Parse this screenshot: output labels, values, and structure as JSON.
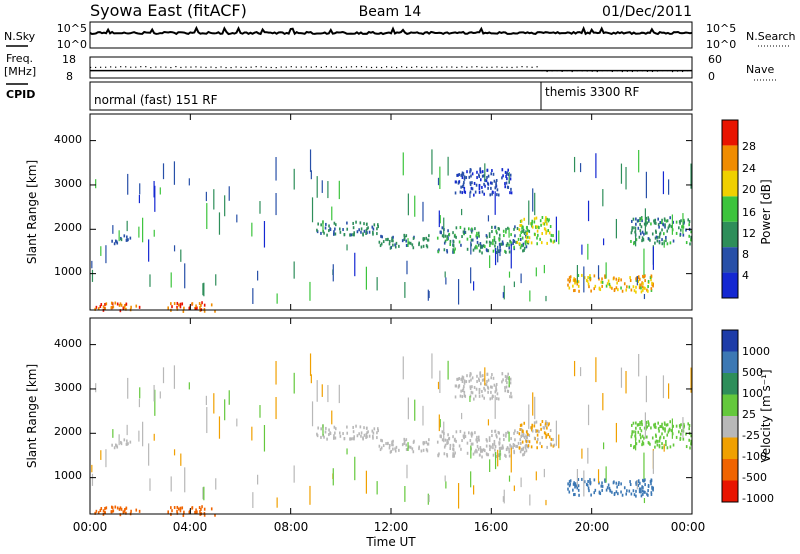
{
  "header": {
    "title": "Syowa East (fitACF)",
    "beam": "Beam 14",
    "date": "01/Dec/2011"
  },
  "noise_panel": {
    "label": "N.Sky",
    "left_ticks": [
      "10^5",
      "10^0"
    ],
    "right_label": "N.Search",
    "right_ticks": [
      "10^5",
      "10^0"
    ]
  },
  "freq_panel": {
    "label_line1": "Freq.",
    "label_line2": "[MHz]",
    "left_ticks": [
      "18",
      "8"
    ],
    "right_label": "Nave",
    "right_ticks": [
      "60",
      "0"
    ],
    "freq_mhz": 11.5
  },
  "cpid_panel": {
    "label": "CPID",
    "modes": [
      {
        "name": "normal (fast) 151 RF",
        "start_h": 0
      },
      {
        "name": "themis 3300 RF",
        "start_h": 18
      }
    ]
  },
  "x_axis": {
    "ticks": [
      "00:00",
      "04:00",
      "08:00",
      "12:00",
      "16:00",
      "20:00",
      "00:00"
    ],
    "label": "Time UT"
  },
  "power_panel": {
    "ylabel": "Slant Range [km]",
    "yticks": [
      "1000",
      "2000",
      "3000",
      "4000"
    ],
    "colorbar_label": "Power [dB]",
    "colorbar_ticks": [
      "4",
      "8",
      "12",
      "16",
      "20",
      "24",
      "28"
    ],
    "colors": [
      "#1428d2",
      "#2850a8",
      "#2e8e5a",
      "#3cc43c",
      "#f0d000",
      "#f08c00",
      "#e81400"
    ]
  },
  "velocity_panel": {
    "ylabel": "Slant Range [km]",
    "yticks": [
      "1000",
      "2000",
      "3000",
      "4000"
    ],
    "colorbar_label": "Velocity [m s⁻¹]",
    "colorbar_ticks": [
      "1000",
      "500",
      "100",
      "25",
      "-25",
      "-100",
      "-500",
      "-1000"
    ],
    "colors": [
      "#1e3ca8",
      "#3c78b4",
      "#2e8e5a",
      "#64c83c",
      "#b8b8b8",
      "#f0a000",
      "#f06400",
      "#e81400"
    ]
  },
  "chart_data": {
    "type": "heatmap",
    "x_range_h": [
      0,
      24
    ],
    "y_range_km": [
      180,
      4600
    ],
    "scatter_regions": [
      {
        "t": [
          0,
          2
        ],
        "r": [
          180,
          380
        ],
        "p": [
          22,
          28
        ],
        "v": [
          -500,
          -100
        ]
      },
      {
        "t": [
          3,
          5
        ],
        "r": [
          180,
          380
        ],
        "p": [
          22,
          28
        ],
        "v": [
          -500,
          -100
        ]
      },
      {
        "t": [
          0.8,
          1.6
        ],
        "r": [
          1700,
          1900
        ],
        "p": [
          6,
          12
        ],
        "v": [
          -25,
          25
        ]
      },
      {
        "t": [
          9,
          11.5
        ],
        "r": [
          1900,
          2200
        ],
        "p": [
          8,
          14
        ],
        "v": [
          -25,
          25
        ]
      },
      {
        "t": [
          11.5,
          13.5
        ],
        "r": [
          1600,
          1900
        ],
        "p": [
          8,
          14
        ],
        "v": [
          -25,
          25
        ]
      },
      {
        "t": [
          13.8,
          17.5
        ],
        "r": [
          1500,
          2100
        ],
        "p": [
          8,
          16
        ],
        "v": [
          -25,
          25
        ]
      },
      {
        "t": [
          14.5,
          16.8
        ],
        "r": [
          2800,
          3400
        ],
        "p": [
          4,
          10
        ],
        "v": [
          -25,
          25
        ]
      },
      {
        "t": [
          17,
          18.5
        ],
        "r": [
          1700,
          2300
        ],
        "p": [
          14,
          22
        ],
        "v": [
          -100,
          25
        ]
      },
      {
        "t": [
          19,
          22.5
        ],
        "r": [
          600,
          1000
        ],
        "p": [
          16,
          26
        ],
        "v": [
          500,
          1000
        ]
      },
      {
        "t": [
          21.5,
          24
        ],
        "r": [
          1700,
          2300
        ],
        "p": [
          8,
          16
        ],
        "v": [
          25,
          100
        ]
      }
    ]
  }
}
